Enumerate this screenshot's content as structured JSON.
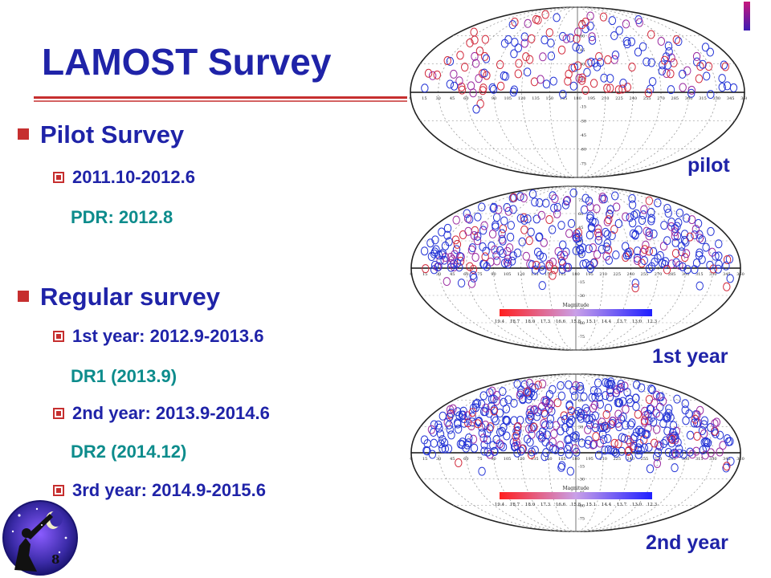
{
  "slide": {
    "title": "LAMOST Survey",
    "page_number": "8",
    "bullets": [
      {
        "level": 1,
        "text": "Pilot Survey"
      },
      {
        "level": 2,
        "text": "2011.10-2012.6"
      },
      {
        "level": 3,
        "text": "PDR: 2012.8"
      },
      {
        "level": 1,
        "text": "Regular survey"
      },
      {
        "level": 2,
        "text": "1st year: 2012.9-2013.6"
      },
      {
        "level": 3,
        "text": "DR1 (2013.9)"
      },
      {
        "level": 2,
        "text": "2nd year: 2013.9-2014.6"
      },
      {
        "level": 3,
        "text": "DR2 (2014.12)"
      },
      {
        "level": 2,
        "text": "3rd year: 2014.9-2015.6"
      }
    ],
    "maps": [
      {
        "label": "pilot",
        "colorbar": false,
        "colorbar_title": "",
        "colorbar_ticks": []
      },
      {
        "label": "1st year",
        "colorbar": true,
        "colorbar_title": "Magnitude",
        "colorbar_ticks": [
          "19.4",
          "18.7",
          "18.0",
          "17.3",
          "16.6",
          "15.8",
          "15.1",
          "14.4",
          "13.7",
          "13.0",
          "12.3"
        ]
      },
      {
        "label": "2nd year",
        "colorbar": true,
        "colorbar_title": "Magnitude",
        "colorbar_ticks": [
          "19.4",
          "18.7",
          "18.0",
          "17.3",
          "16.6",
          "15.8",
          "15.1",
          "14.4",
          "13.7",
          "13.0",
          "12.3"
        ]
      }
    ],
    "colors": {
      "title": "#1f23a8",
      "accent": "#c62f2f",
      "teal": "#0d8c8c",
      "plate_red": "#d22a3c",
      "plate_blue": "#2434d6",
      "plate_mag": "#9a2aa0"
    }
  }
}
